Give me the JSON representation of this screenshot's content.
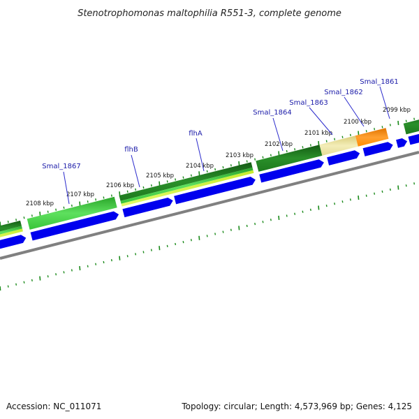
{
  "title": "Stenotrophomonas maltophilia R551-3, complete genome",
  "footer": {
    "accession": "Accession: NC_011071",
    "summary": "Topology: circular; Length: 4,573,969 bp; Genes: 4,125"
  },
  "axis_labels": [
    "2108 kbp",
    "2107 kbp",
    "2106 kbp",
    "2105 kbp",
    "2104 kbp",
    "2103 kbp",
    "2102 kbp",
    "2101 kbp",
    "2100 kbp",
    "2099 kbp"
  ],
  "gene_labels": [
    "Smal_1867",
    "flhB",
    "flhA",
    "Smal_1864",
    "Smal_1863",
    "Smal_1862",
    "Smal_1861"
  ],
  "colors": {
    "cds": "#0000ee",
    "ticks": "#1a8a1a",
    "backbone": "#808080",
    "label": "#1a1aa8",
    "conservation_high": "#1e7a1e",
    "conservation_mid": "#3fcf3f",
    "conservation_low": "#e8de90",
    "conservation_unique": "#ff8c00"
  }
}
